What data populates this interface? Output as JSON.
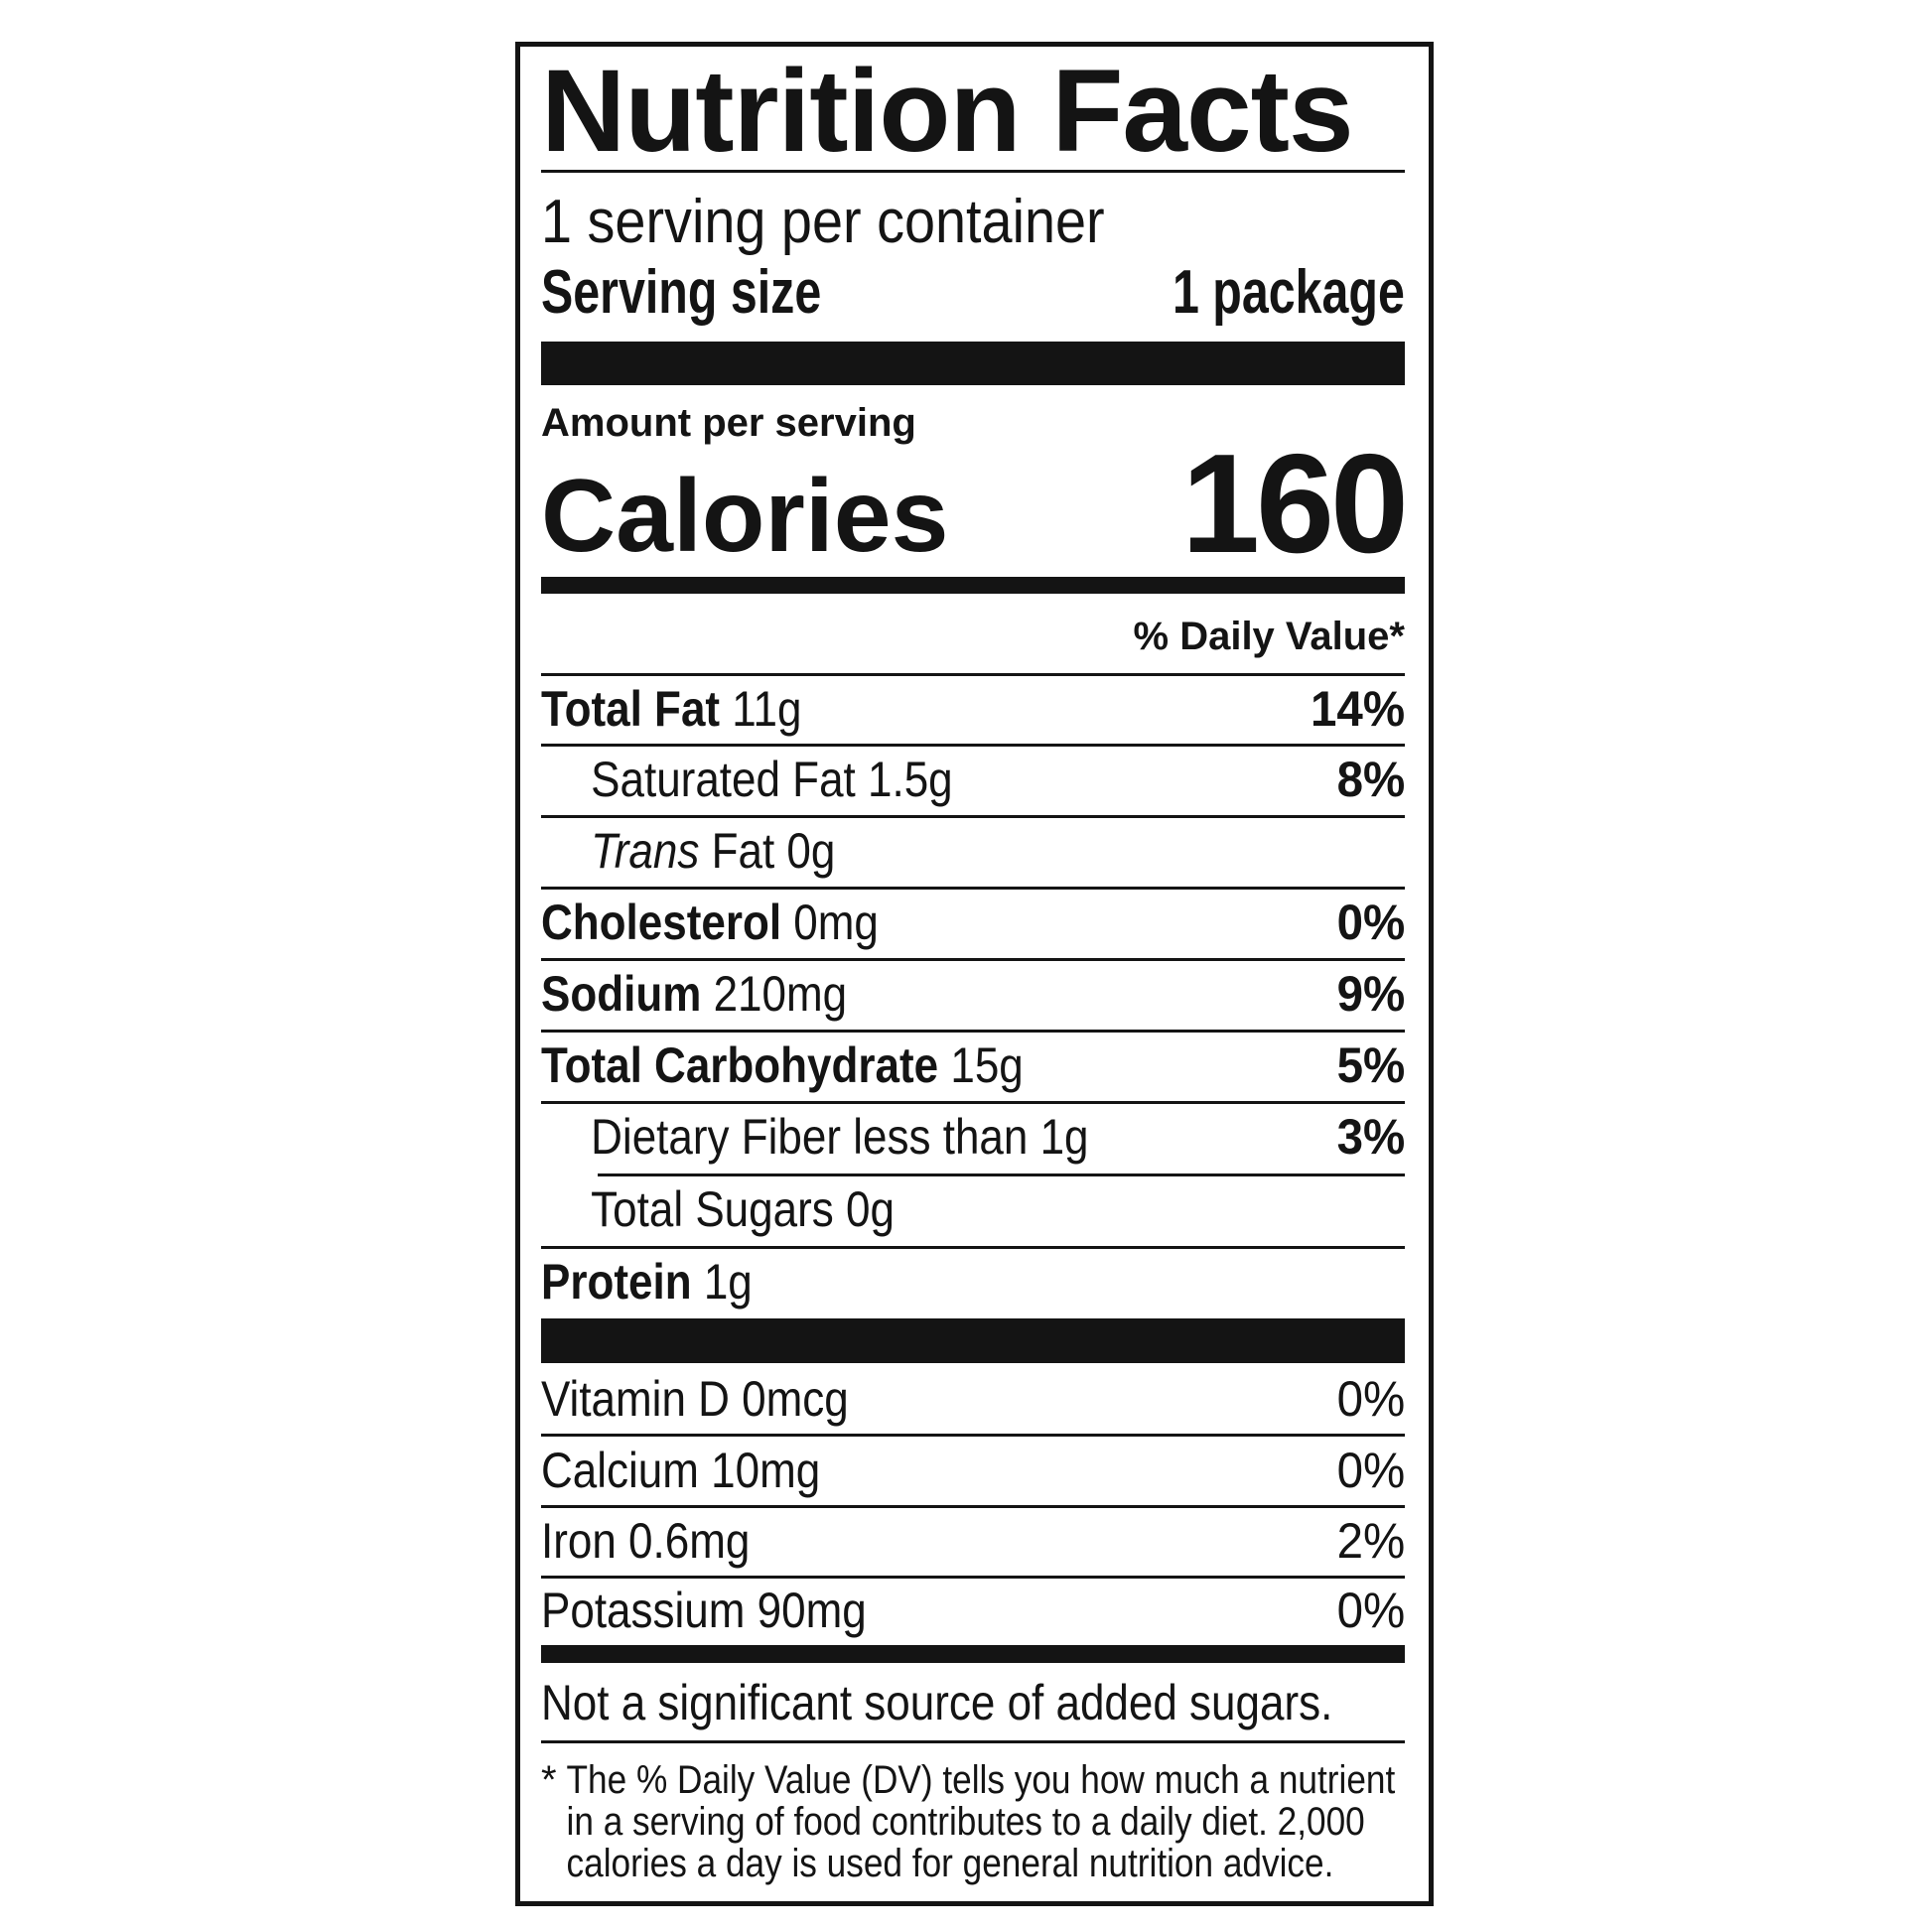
{
  "title": "Nutrition Facts",
  "servings_per_container": "1 serving per container",
  "serving_size": {
    "label": "Serving size",
    "value": "1 package"
  },
  "amount_per_serving": "Amount per serving",
  "calories": {
    "label": "Calories",
    "value": "160"
  },
  "daily_value_header": "% Daily Value*",
  "nutrients": [
    {
      "name": "Total Fat",
      "amount": "11g",
      "dv": "14%"
    },
    {
      "name": "Saturated Fat",
      "amount": "1.5g",
      "dv": "8%"
    },
    {
      "name": "Trans",
      "name_rest": "Fat",
      "amount": "0g",
      "dv": ""
    },
    {
      "name": "Cholesterol",
      "amount": "0mg",
      "dv": "0%"
    },
    {
      "name": "Sodium",
      "amount": "210mg",
      "dv": "9%"
    },
    {
      "name": "Total Carbohydrate",
      "amount": "15g",
      "dv": "5%"
    },
    {
      "name": "Dietary Fiber",
      "amount": "less than 1g",
      "dv": "3%"
    },
    {
      "name": "Total Sugars",
      "amount": "0g",
      "dv": ""
    },
    {
      "name": "Protein",
      "amount": "1g",
      "dv": ""
    }
  ],
  "vitamins": [
    {
      "label": "Vitamin D 0mcg",
      "dv": "0%"
    },
    {
      "label": "Calcium 10mg",
      "dv": "0%"
    },
    {
      "label": "Iron 0.6mg",
      "dv": "2%"
    },
    {
      "label": "Potassium 90mg",
      "dv": "0%"
    }
  ],
  "added_sugars_note": "Not a significant source of added sugars.",
  "footnote": {
    "marker": "*",
    "lines": [
      "The % Daily Value (DV) tells you how much a nutrient",
      "in a serving of food contributes to a daily diet. 2,000",
      "calories a day is used for general nutrition advice."
    ]
  }
}
